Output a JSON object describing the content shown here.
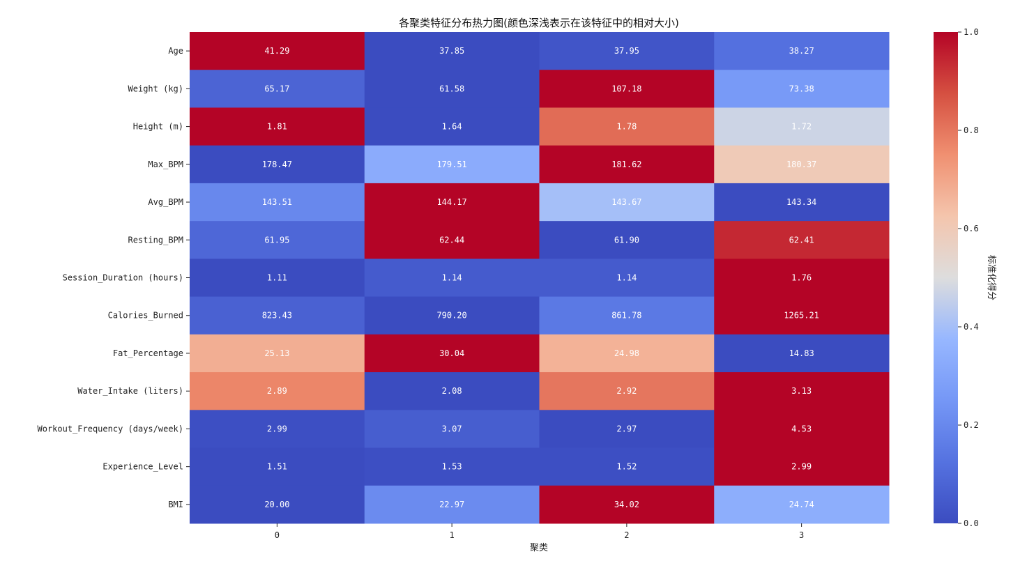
{
  "chart_data": {
    "type": "heatmap",
    "title": "各聚类特征分布热力图(颜色深浅表示在该特征中的相对大小)",
    "xlabel": "聚类",
    "ylabel": "",
    "x_categories": [
      "0",
      "1",
      "2",
      "3"
    ],
    "y_categories": [
      "Age",
      "Weight (kg)",
      "Height (m)",
      "Max_BPM",
      "Avg_BPM",
      "Resting_BPM",
      "Session_Duration (hours)",
      "Calories_Burned",
      "Fat_Percentage",
      "Water_Intake (liters)",
      "Workout_Frequency (days/week)",
      "Experience_Level",
      "BMI"
    ],
    "annotations": [
      [
        "41.29",
        "37.85",
        "37.95",
        "38.27"
      ],
      [
        "65.17",
        "61.58",
        "107.18",
        "73.38"
      ],
      [
        "1.81",
        "1.64",
        "1.78",
        "1.72"
      ],
      [
        "178.47",
        "179.51",
        "181.62",
        "180.37"
      ],
      [
        "143.51",
        "144.17",
        "143.67",
        "143.34"
      ],
      [
        "61.95",
        "62.44",
        "61.90",
        "62.41"
      ],
      [
        "1.11",
        "1.14",
        "1.14",
        "1.76"
      ],
      [
        "823.43",
        "790.20",
        "861.78",
        "1265.21"
      ],
      [
        "25.13",
        "30.04",
        "24.98",
        "14.83"
      ],
      [
        "2.89",
        "2.08",
        "2.92",
        "3.13"
      ],
      [
        "2.99",
        "3.07",
        "2.97",
        "4.53"
      ],
      [
        "1.51",
        "1.53",
        "1.52",
        "2.99"
      ],
      [
        "20.00",
        "22.97",
        "34.02",
        "24.74"
      ]
    ],
    "scores": [
      [
        1.0,
        0.0,
        0.03,
        0.12
      ],
      [
        0.08,
        0.0,
        1.0,
        0.26
      ],
      [
        1.0,
        0.0,
        0.82,
        0.47
      ],
      [
        0.0,
        0.33,
        1.0,
        0.6
      ],
      [
        0.2,
        1.0,
        0.4,
        0.0
      ],
      [
        0.09,
        1.0,
        0.0,
        0.94
      ],
      [
        0.0,
        0.05,
        0.05,
        1.0
      ],
      [
        0.07,
        0.0,
        0.15,
        1.0
      ],
      [
        0.68,
        1.0,
        0.67,
        0.0
      ],
      [
        0.77,
        0.0,
        0.8,
        1.0
      ],
      [
        0.01,
        0.06,
        0.0,
        1.0
      ],
      [
        0.0,
        0.01,
        0.01,
        1.0
      ],
      [
        0.0,
        0.21,
        1.0,
        0.34
      ]
    ],
    "colorbar": {
      "label": "标准化得分",
      "range": [
        0.0,
        1.0
      ],
      "ticks": [
        "0.0",
        "0.2",
        "0.4",
        "0.6",
        "0.8",
        "1.0"
      ]
    },
    "colormap": "coolwarm"
  }
}
